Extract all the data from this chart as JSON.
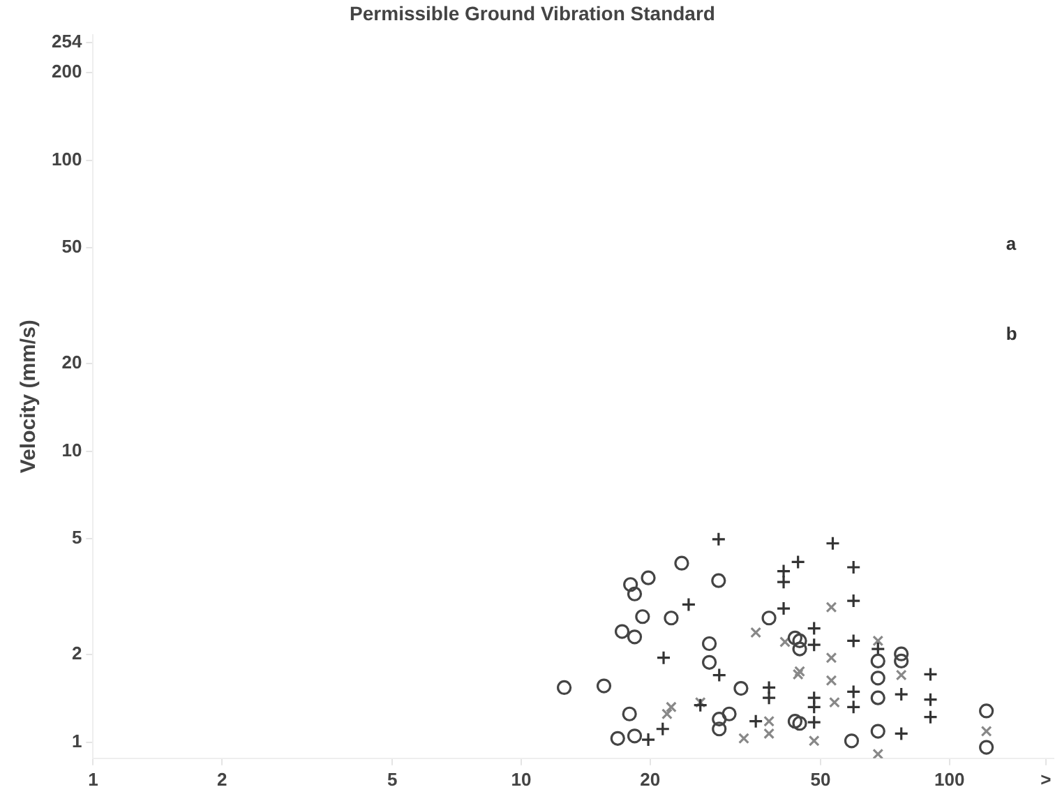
{
  "chart_data": {
    "type": "scatter",
    "title": "Permissible Ground Vibration Standard",
    "ylabel": "Velocity (mm/s)",
    "log": "xy",
    "xlim": [
      1,
      175
    ],
    "xticks": [
      1,
      2,
      5,
      10,
      20,
      50,
      100,
      {
        "value": 168,
        "label": ">"
      }
    ],
    "ylim": [
      0.88,
      270
    ],
    "yticks": [
      1,
      2,
      5,
      10,
      20,
      50,
      100,
      200,
      254
    ],
    "annotations": [
      "a",
      "b"
    ],
    "series": [
      {
        "color": "#444444",
        "marker": "circle",
        "x": [
          12.6,
          15.6,
          17.9,
          16.8,
          18.4,
          18.0,
          19.8,
          18.4,
          19.2,
          22.4,
          17.2,
          18.4,
          23.7,
          28.9,
          27.5,
          27.5,
          32.6,
          30.6,
          29.0,
          29.0,
          37.9,
          44.7,
          44.7,
          44.7,
          43.6,
          43.6,
          59.1,
          68.1,
          68.1,
          68.1,
          68.1,
          77.2,
          77.2,
          122,
          122
        ],
        "values": [
          1.54,
          1.56,
          1.25,
          1.03,
          1.05,
          3.48,
          3.67,
          3.23,
          2.7,
          2.67,
          2.4,
          2.3,
          4.12,
          3.59,
          2.18,
          1.88,
          1.53,
          1.25,
          1.2,
          1.11,
          2.67,
          2.23,
          2.09,
          1.16,
          2.28,
          1.18,
          1.01,
          1.9,
          1.66,
          1.42,
          1.09,
          2.01,
          1.9,
          1.28,
          0.96
        ]
      },
      {
        "color": "#333333",
        "marker": "cross",
        "x": [
          28.9,
          44.3,
          41.0,
          41.0,
          24.6,
          41.0,
          21.5,
          29.0,
          21.4,
          19.8,
          26.2,
          35.3,
          37.9,
          37.9,
          48.3,
          48.3,
          48.3,
          48.3,
          48.3,
          53.4,
          59.7,
          59.7,
          59.7,
          59.7,
          59.7,
          68.1,
          77.2,
          90.3,
          90.3,
          90.3,
          77.2
        ],
        "values": [
          4.98,
          4.16,
          3.87,
          3.55,
          2.97,
          2.88,
          1.95,
          1.7,
          1.11,
          1.02,
          1.34,
          1.18,
          1.54,
          1.42,
          2.46,
          2.16,
          1.42,
          1.32,
          1.17,
          4.82,
          3.99,
          3.06,
          2.23,
          1.49,
          1.32,
          2.09,
          1.46,
          1.71,
          1.4,
          1.22,
          1.07
        ]
      },
      {
        "color": "#888888",
        "marker": "x",
        "x": [
          35.3,
          44.3,
          22.4,
          21.9,
          26.2,
          33.1,
          37.9,
          37.9,
          48.3,
          41.3,
          44.7,
          53.0,
          53.0,
          53.0,
          53.9,
          68.1,
          68.1,
          77.2,
          122
        ],
        "values": [
          2.38,
          1.71,
          1.32,
          1.25,
          1.37,
          1.03,
          1.07,
          1.18,
          1.01,
          2.21,
          1.75,
          2.91,
          1.95,
          1.63,
          1.37,
          2.23,
          0.91,
          1.7,
          1.09
        ]
      }
    ]
  }
}
